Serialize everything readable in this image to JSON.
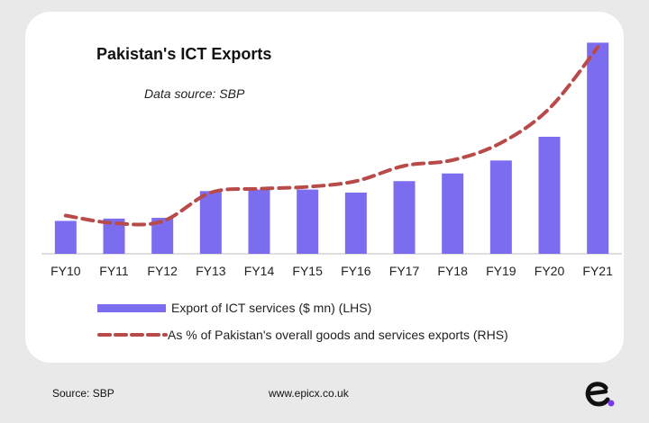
{
  "colors": {
    "bar": "#7c6cf0",
    "line": "#b84a4a",
    "background": "#e9e9e9",
    "card": "#ffffff"
  },
  "chart_data": {
    "type": "bar",
    "title": "Pakistan's ICT Exports",
    "subtitle": "Data source: SBP",
    "categories": [
      "FY10",
      "FY11",
      "FY12",
      "FY13",
      "FY14",
      "FY15",
      "FY16",
      "FY17",
      "FY18",
      "FY19",
      "FY20",
      "FY21"
    ],
    "series": [
      {
        "name": "Export of ICT services ($ mn) (LHS)",
        "type": "bar",
        "values": [
          430,
          460,
          470,
          820,
          840,
          840,
          800,
          950,
          1050,
          1220,
          1530,
          2760
        ]
      },
      {
        "name": "As % of Pakistan's overall goods and services exports (RHS)",
        "type": "line",
        "style": "dashed",
        "values": [
          2.0,
          1.6,
          1.7,
          3.2,
          3.4,
          3.5,
          3.8,
          4.6,
          4.9,
          5.8,
          7.6,
          10.8
        ]
      }
    ],
    "ylim_left": [
      0,
      2800
    ],
    "ylim_right": [
      0,
      11.2
    ],
    "legend_position": "bottom",
    "grid": false
  },
  "footer": {
    "source": "Source: SBP",
    "website": "www.epicx.co.uk"
  }
}
